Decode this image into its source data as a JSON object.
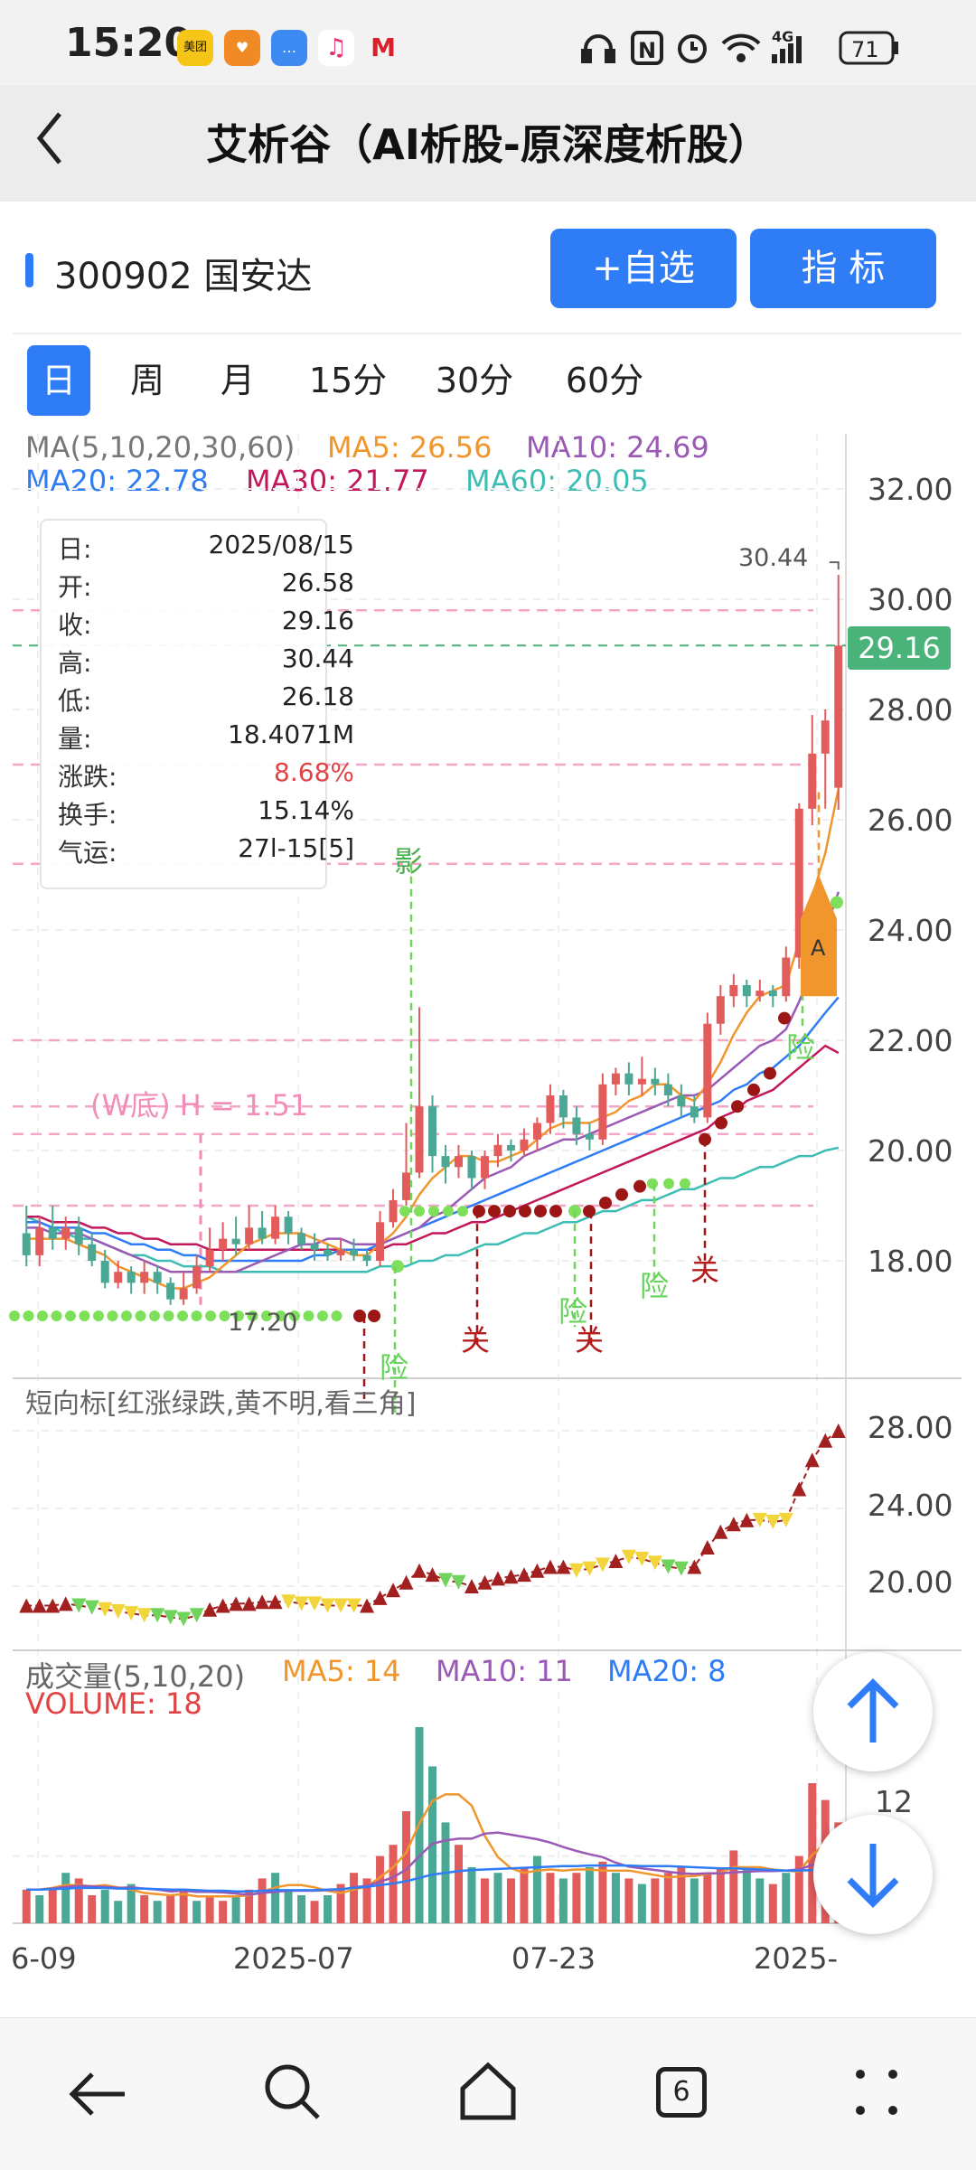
{
  "status_bar": {
    "time": "15:20",
    "app_icons": [
      {
        "name": "meituan-icon",
        "label": "美团",
        "color": "#f5c518"
      },
      {
        "name": "heart-app-icon",
        "label": "♥",
        "color": "#f08a24"
      },
      {
        "name": "chat-app-icon",
        "label": "…",
        "color": "#3d8bf2"
      },
      {
        "name": "music-app-icon",
        "label": "♫",
        "color": "#f2f2f2"
      },
      {
        "name": "bank-app-icon",
        "label": "M",
        "color": "#d9202a"
      }
    ],
    "network": "4G",
    "battery": "71"
  },
  "header": {
    "back_icon": "chevron-left-icon",
    "title": "艾析谷（AI析股-原深度析股）"
  },
  "stock": {
    "name": "300902 国安达",
    "watch_button": "+自选",
    "indicator_button": "指  标",
    "accent": "#2f7df6"
  },
  "period_tabs": [
    {
      "label": "日",
      "active": true
    },
    {
      "label": "周",
      "active": false
    },
    {
      "label": "月",
      "active": false
    },
    {
      "label": "15分",
      "active": false
    },
    {
      "label": "30分",
      "active": false
    },
    {
      "label": "60分",
      "active": false
    }
  ],
  "ma_legend": {
    "title": "MA(5,10,20,30,60)",
    "ma5": "MA5: 26.56",
    "ma10": "MA10: 24.69",
    "ma20": "MA20: 22.78",
    "ma30": "MA30: 21.77",
    "ma60": "MA60: 20.05",
    "colors": {
      "ma5": "#f0962d",
      "ma10": "#9b59b6",
      "ma20": "#2f7df6",
      "ma30": "#c2185b",
      "ma60": "#3dbdb4"
    }
  },
  "price_axis": [
    "32.00",
    "30.00",
    "28.00",
    "26.00",
    "24.00",
    "22.00",
    "20.00",
    "18.00"
  ],
  "current_price_badge": "29.16",
  "high_marker": "30.44",
  "low_marker": "17.20",
  "w_bottom_label": "(W底) H = 1.51",
  "tooltip": {
    "rows": [
      {
        "k": "日:",
        "v": "2025/08/15",
        "red": false
      },
      {
        "k": "开:",
        "v": "26.58",
        "red": false
      },
      {
        "k": "收:",
        "v": "29.16",
        "red": false
      },
      {
        "k": "高:",
        "v": "30.44",
        "red": false
      },
      {
        "k": "低:",
        "v": "26.18",
        "red": false
      },
      {
        "k": "量:",
        "v": "18.4071M",
        "red": false
      },
      {
        "k": "涨跌:",
        "v": "8.68%",
        "red": true
      },
      {
        "k": "换手:",
        "v": "15.14%",
        "red": false
      },
      {
        "k": "气运:",
        "v": "27l-15[5]",
        "red": false
      }
    ]
  },
  "signal_labels": [
    "影",
    "险",
    "关",
    "险",
    "关",
    "险",
    "关",
    "险",
    "A"
  ],
  "short_indicator": {
    "title": "短向标[红涨绿跌,黄不明,看三角]",
    "axis": [
      "28.00",
      "24.00",
      "20.00"
    ]
  },
  "volume_panel": {
    "title": "成交量(5,10,20)",
    "ma5": "MA5: 14",
    "ma10": "MA10: 11",
    "ma20": "MA20: 8",
    "volume": "VOLUME: 18",
    "axis_tick": "12"
  },
  "date_axis": [
    "6-09",
    "2025-07",
    "07-23",
    "2025-"
  ],
  "fab": {
    "up_icon": "arrow-up-icon",
    "down_icon": "arrow-down-icon"
  },
  "nav_bar": {
    "tab_count": "6"
  },
  "chart_data": {
    "type": "candlestick",
    "symbol": "300902 国安达",
    "period": "日",
    "ylim": [
      17,
      32.5
    ],
    "candles": [
      {
        "o": 18.5,
        "c": 18.1,
        "h": 19.0,
        "l": 17.9
      },
      {
        "o": 18.1,
        "c": 18.6,
        "h": 18.8,
        "l": 17.9
      },
      {
        "o": 18.6,
        "c": 18.4,
        "h": 19.0,
        "l": 18.2
      },
      {
        "o": 18.4,
        "c": 18.6,
        "h": 18.8,
        "l": 18.2
      },
      {
        "o": 18.6,
        "c": 18.3,
        "h": 18.8,
        "l": 18.1
      },
      {
        "o": 18.3,
        "c": 18.0,
        "h": 18.5,
        "l": 17.9
      },
      {
        "o": 18.0,
        "c": 17.6,
        "h": 18.2,
        "l": 17.5
      },
      {
        "o": 17.6,
        "c": 17.8,
        "h": 18.0,
        "l": 17.5
      },
      {
        "o": 17.8,
        "c": 17.6,
        "h": 17.9,
        "l": 17.4
      },
      {
        "o": 17.6,
        "c": 17.8,
        "h": 18.0,
        "l": 17.4
      },
      {
        "o": 17.8,
        "c": 17.6,
        "h": 17.9,
        "l": 17.4
      },
      {
        "o": 17.6,
        "c": 17.3,
        "h": 17.7,
        "l": 17.2
      },
      {
        "o": 17.3,
        "c": 17.5,
        "h": 17.8,
        "l": 17.2
      },
      {
        "o": 17.5,
        "c": 17.9,
        "h": 18.1,
        "l": 17.4
      },
      {
        "o": 17.9,
        "c": 18.2,
        "h": 18.6,
        "l": 17.8
      },
      {
        "o": 18.2,
        "c": 18.4,
        "h": 18.7,
        "l": 18.0
      },
      {
        "o": 18.4,
        "c": 18.3,
        "h": 18.8,
        "l": 18.1
      },
      {
        "o": 18.3,
        "c": 18.6,
        "h": 19.0,
        "l": 18.2
      },
      {
        "o": 18.6,
        "c": 18.4,
        "h": 18.9,
        "l": 18.3
      },
      {
        "o": 18.4,
        "c": 18.8,
        "h": 19.0,
        "l": 18.3
      },
      {
        "o": 18.8,
        "c": 18.5,
        "h": 18.9,
        "l": 18.3
      },
      {
        "o": 18.5,
        "c": 18.3,
        "h": 18.6,
        "l": 18.2
      },
      {
        "o": 18.3,
        "c": 18.2,
        "h": 18.5,
        "l": 18.0
      },
      {
        "o": 18.2,
        "c": 18.1,
        "h": 18.3,
        "l": 18.0
      },
      {
        "o": 18.1,
        "c": 18.2,
        "h": 18.4,
        "l": 18.0
      },
      {
        "o": 18.2,
        "c": 18.1,
        "h": 18.4,
        "l": 18.0
      },
      {
        "o": 18.1,
        "c": 18.0,
        "h": 18.2,
        "l": 17.9
      },
      {
        "o": 18.0,
        "c": 18.7,
        "h": 18.9,
        "l": 17.9
      },
      {
        "o": 18.7,
        "c": 19.1,
        "h": 19.3,
        "l": 18.6
      },
      {
        "o": 19.1,
        "c": 19.6,
        "h": 20.5,
        "l": 19.0
      },
      {
        "o": 19.6,
        "c": 20.8,
        "h": 22.6,
        "l": 19.5
      },
      {
        "o": 20.8,
        "c": 19.9,
        "h": 21.0,
        "l": 19.6
      },
      {
        "o": 19.9,
        "c": 19.7,
        "h": 20.1,
        "l": 19.4
      },
      {
        "o": 19.7,
        "c": 19.9,
        "h": 20.1,
        "l": 19.5
      },
      {
        "o": 19.9,
        "c": 19.5,
        "h": 20.0,
        "l": 19.3
      },
      {
        "o": 19.5,
        "c": 19.9,
        "h": 20.0,
        "l": 19.3
      },
      {
        "o": 19.9,
        "c": 20.1,
        "h": 20.3,
        "l": 19.7
      },
      {
        "o": 20.1,
        "c": 20.0,
        "h": 20.2,
        "l": 19.8
      },
      {
        "o": 20.0,
        "c": 20.2,
        "h": 20.4,
        "l": 19.9
      },
      {
        "o": 20.2,
        "c": 20.5,
        "h": 20.6,
        "l": 20.0
      },
      {
        "o": 20.5,
        "c": 21.0,
        "h": 21.2,
        "l": 20.3
      },
      {
        "o": 21.0,
        "c": 20.6,
        "h": 21.1,
        "l": 20.4
      },
      {
        "o": 20.6,
        "c": 20.3,
        "h": 20.8,
        "l": 20.1
      },
      {
        "o": 20.3,
        "c": 20.2,
        "h": 20.5,
        "l": 20.0
      },
      {
        "o": 20.2,
        "c": 21.2,
        "h": 21.4,
        "l": 20.1
      },
      {
        "o": 21.2,
        "c": 21.4,
        "h": 21.5,
        "l": 21.0
      },
      {
        "o": 21.4,
        "c": 21.2,
        "h": 21.6,
        "l": 21.0
      },
      {
        "o": 21.2,
        "c": 21.3,
        "h": 21.7,
        "l": 21.0
      },
      {
        "o": 21.3,
        "c": 21.2,
        "h": 21.5,
        "l": 21.0
      },
      {
        "o": 21.2,
        "c": 21.0,
        "h": 21.4,
        "l": 20.8
      },
      {
        "o": 21.0,
        "c": 20.8,
        "h": 21.2,
        "l": 20.6
      },
      {
        "o": 20.8,
        "c": 20.6,
        "h": 21.0,
        "l": 20.5
      },
      {
        "o": 20.6,
        "c": 22.3,
        "h": 22.5,
        "l": 20.5
      },
      {
        "o": 22.3,
        "c": 22.8,
        "h": 23.0,
        "l": 22.1
      },
      {
        "o": 22.8,
        "c": 23.0,
        "h": 23.2,
        "l": 22.6
      },
      {
        "o": 23.0,
        "c": 22.8,
        "h": 23.1,
        "l": 22.6
      },
      {
        "o": 22.8,
        "c": 22.9,
        "h": 23.1,
        "l": 22.7
      },
      {
        "o": 22.9,
        "c": 22.8,
        "h": 23.0,
        "l": 22.6
      },
      {
        "o": 22.8,
        "c": 23.5,
        "h": 23.7,
        "l": 22.7
      },
      {
        "o": 23.5,
        "c": 26.2,
        "h": 26.3,
        "l": 23.3
      },
      {
        "o": 26.2,
        "c": 27.2,
        "h": 27.9,
        "l": 25.9
      },
      {
        "o": 27.2,
        "c": 27.8,
        "h": 28.0,
        "l": 26.2
      },
      {
        "o": 26.58,
        "c": 29.16,
        "h": 30.44,
        "l": 26.18
      }
    ],
    "ma5": [
      18.4,
      18.4,
      18.4,
      18.4,
      18.3,
      18.2,
      18.1,
      17.9,
      17.8,
      17.7,
      17.6,
      17.5,
      17.5,
      17.6,
      17.7,
      17.9,
      18.1,
      18.3,
      18.4,
      18.5,
      18.5,
      18.5,
      18.4,
      18.3,
      18.2,
      18.1,
      18.1,
      18.3,
      18.5,
      18.8,
      19.2,
      19.5,
      19.7,
      19.9,
      19.9,
      19.8,
      19.8,
      19.9,
      20.0,
      20.2,
      20.4,
      20.5,
      20.5,
      20.5,
      20.6,
      20.7,
      20.9,
      21.0,
      21.2,
      21.2,
      21.0,
      20.9,
      21.2,
      21.6,
      22.1,
      22.5,
      22.8,
      22.9,
      23.0,
      23.8,
      24.6,
      25.4,
      26.56
    ],
    "ma10": [
      18.6,
      18.6,
      18.5,
      18.5,
      18.5,
      18.4,
      18.3,
      18.2,
      18.1,
      18.0,
      17.9,
      17.8,
      17.8,
      17.8,
      17.8,
      17.8,
      17.8,
      17.9,
      18.0,
      18.1,
      18.2,
      18.3,
      18.3,
      18.4,
      18.4,
      18.3,
      18.3,
      18.3,
      18.4,
      18.5,
      18.6,
      18.8,
      18.9,
      19.1,
      19.3,
      19.5,
      19.6,
      19.7,
      19.9,
      20.0,
      20.1,
      20.2,
      20.2,
      20.3,
      20.4,
      20.5,
      20.6,
      20.7,
      20.8,
      20.9,
      21.0,
      21.0,
      21.1,
      21.3,
      21.5,
      21.7,
      21.9,
      22.0,
      22.2,
      22.7,
      23.3,
      24.0,
      24.69
    ],
    "ma20": [
      18.7,
      18.7,
      18.6,
      18.6,
      18.6,
      18.5,
      18.5,
      18.4,
      18.3,
      18.3,
      18.2,
      18.2,
      18.1,
      18.1,
      18.0,
      18.0,
      18.0,
      18.0,
      18.0,
      18.0,
      18.0,
      18.0,
      18.1,
      18.1,
      18.2,
      18.2,
      18.2,
      18.3,
      18.4,
      18.5,
      18.6,
      18.7,
      18.8,
      18.9,
      19.0,
      19.1,
      19.2,
      19.3,
      19.4,
      19.5,
      19.6,
      19.7,
      19.8,
      19.9,
      20.0,
      20.1,
      20.2,
      20.3,
      20.4,
      20.5,
      20.6,
      20.7,
      20.8,
      20.9,
      21.1,
      21.2,
      21.4,
      21.5,
      21.7,
      21.9,
      22.2,
      22.5,
      22.78
    ],
    "ma30": [
      18.8,
      18.8,
      18.7,
      18.7,
      18.7,
      18.6,
      18.6,
      18.5,
      18.5,
      18.4,
      18.4,
      18.3,
      18.3,
      18.3,
      18.2,
      18.2,
      18.2,
      18.2,
      18.2,
      18.2,
      18.2,
      18.2,
      18.2,
      18.2,
      18.2,
      18.2,
      18.2,
      18.2,
      18.3,
      18.3,
      18.4,
      18.5,
      18.5,
      18.6,
      18.7,
      18.7,
      18.8,
      18.9,
      19.0,
      19.1,
      19.2,
      19.3,
      19.4,
      19.5,
      19.6,
      19.7,
      19.8,
      19.9,
      20.0,
      20.1,
      20.2,
      20.3,
      20.4,
      20.6,
      20.7,
      20.9,
      21.0,
      21.1,
      21.3,
      21.5,
      21.7,
      21.9,
      21.77
    ],
    "ma60": [
      18.8,
      18.7,
      18.6,
      18.5,
      18.4,
      18.4,
      18.3,
      18.2,
      18.1,
      18.1,
      18.0,
      18.0,
      17.9,
      17.9,
      17.9,
      17.8,
      17.8,
      17.8,
      17.8,
      17.8,
      17.8,
      17.8,
      17.8,
      17.8,
      17.8,
      17.8,
      17.8,
      17.9,
      17.9,
      17.9,
      18.0,
      18.0,
      18.1,
      18.1,
      18.2,
      18.3,
      18.3,
      18.4,
      18.5,
      18.5,
      18.6,
      18.7,
      18.7,
      18.8,
      18.9,
      18.9,
      19.0,
      19.1,
      19.1,
      19.2,
      19.3,
      19.3,
      19.4,
      19.5,
      19.5,
      19.6,
      19.7,
      19.7,
      19.8,
      19.9,
      19.9,
      20.0,
      20.05
    ],
    "short_indicator_values": [
      19.0,
      19.0,
      19.0,
      19.1,
      19.0,
      18.9,
      18.8,
      18.7,
      18.6,
      18.5,
      18.5,
      18.4,
      18.3,
      18.5,
      18.8,
      19.0,
      19.1,
      19.1,
      19.2,
      19.2,
      19.2,
      19.1,
      19.1,
      19.0,
      19.0,
      19.0,
      19.0,
      19.4,
      19.8,
      20.2,
      20.8,
      20.6,
      20.3,
      20.2,
      20.0,
      20.2,
      20.4,
      20.5,
      20.6,
      20.8,
      21.0,
      21.0,
      20.8,
      20.9,
      21.1,
      21.3,
      21.5,
      21.4,
      21.2,
      21.0,
      20.9,
      21.0,
      22.0,
      22.8,
      23.2,
      23.4,
      23.4,
      23.3,
      23.4,
      25.0,
      26.5,
      27.5,
      28.0
    ],
    "short_indicator_state": "rrrrggyyyyggggrrrrrryyyyyyrrrrrrggrrrrrrrryyyryyyggrrrrryyyrrrr",
    "volume": [
      6,
      5,
      6,
      9,
      8,
      5,
      6,
      4,
      7,
      5,
      4,
      5,
      6,
      4,
      5,
      4,
      5,
      6,
      8,
      9,
      6,
      5,
      4,
      5,
      7,
      9,
      8,
      12,
      14,
      20,
      35,
      28,
      18,
      14,
      10,
      8,
      9,
      8,
      10,
      12,
      9,
      8,
      9,
      10,
      11,
      9,
      8,
      7,
      8,
      9,
      10,
      8,
      9,
      10,
      13,
      10,
      8,
      7,
      9,
      12,
      25,
      22,
      18
    ],
    "volume_up": "101011000101101101100010111111000101011010101010111011100101111",
    "vol_ma5": [
      6.0,
      6.0,
      6.3,
      6.8,
      6.8,
      6.6,
      6.8,
      6.4,
      6.0,
      5.4,
      5.2,
      5.0,
      5.2,
      4.8,
      4.8,
      4.8,
      4.8,
      5.0,
      5.6,
      6.4,
      6.8,
      6.8,
      6.4,
      5.8,
      5.4,
      6.0,
      6.6,
      8.2,
      10.0,
      12.6,
      17.8,
      21.8,
      23.0,
      23.0,
      21.0,
      15.6,
      11.8,
      9.8,
      9.0,
      9.4,
      9.6,
      9.4,
      9.6,
      9.6,
      9.4,
      9.4,
      9.4,
      9.0,
      8.6,
      8.2,
      8.4,
      8.4,
      8.8,
      9.0,
      10.0,
      10.0,
      10.0,
      9.6,
      9.4,
      9.2,
      12.2,
      14.2,
      14.0
    ],
    "vol_ma10": [
      6.0,
      6.0,
      6.2,
      6.5,
      6.7,
      6.6,
      6.5,
      6.3,
      6.4,
      6.2,
      6.0,
      5.7,
      5.8,
      5.6,
      5.6,
      5.5,
      5.3,
      5.1,
      5.4,
      5.6,
      5.8,
      5.8,
      5.8,
      5.9,
      6.0,
      6.4,
      6.7,
      7.4,
      8.2,
      9.6,
      12.0,
      14.2,
      14.8,
      15.1,
      15.1,
      16.0,
      16.2,
      15.8,
      15.4,
      15.0,
      14.4,
      13.6,
      12.9,
      12.3,
      11.8,
      10.8,
      10.1,
      9.8,
      9.5,
      9.2,
      8.9,
      8.8,
      8.9,
      8.9,
      9.1,
      9.2,
      9.3,
      9.3,
      9.4,
      9.6,
      10.4,
      11.1,
      11.0
    ],
    "vol_ma20": [
      6.0,
      6.0,
      6.1,
      6.2,
      6.3,
      6.3,
      6.3,
      6.2,
      6.2,
      6.2,
      6.1,
      6.0,
      6.0,
      5.9,
      5.8,
      5.8,
      5.7,
      5.7,
      5.8,
      5.9,
      5.9,
      5.9,
      5.9,
      6.0,
      6.1,
      6.3,
      6.5,
      6.8,
      7.1,
      7.5,
      8.1,
      8.7,
      9.0,
      9.3,
      9.5,
      9.6,
      9.7,
      9.8,
      9.9,
      10.0,
      10.1,
      10.2,
      10.2,
      10.3,
      10.3,
      10.3,
      10.3,
      10.2,
      10.2,
      10.2,
      10.1,
      10.0,
      9.9,
      9.8,
      9.8,
      9.7,
      9.6,
      9.5,
      9.4,
      9.4,
      9.5,
      9.6,
      8.0
    ]
  }
}
